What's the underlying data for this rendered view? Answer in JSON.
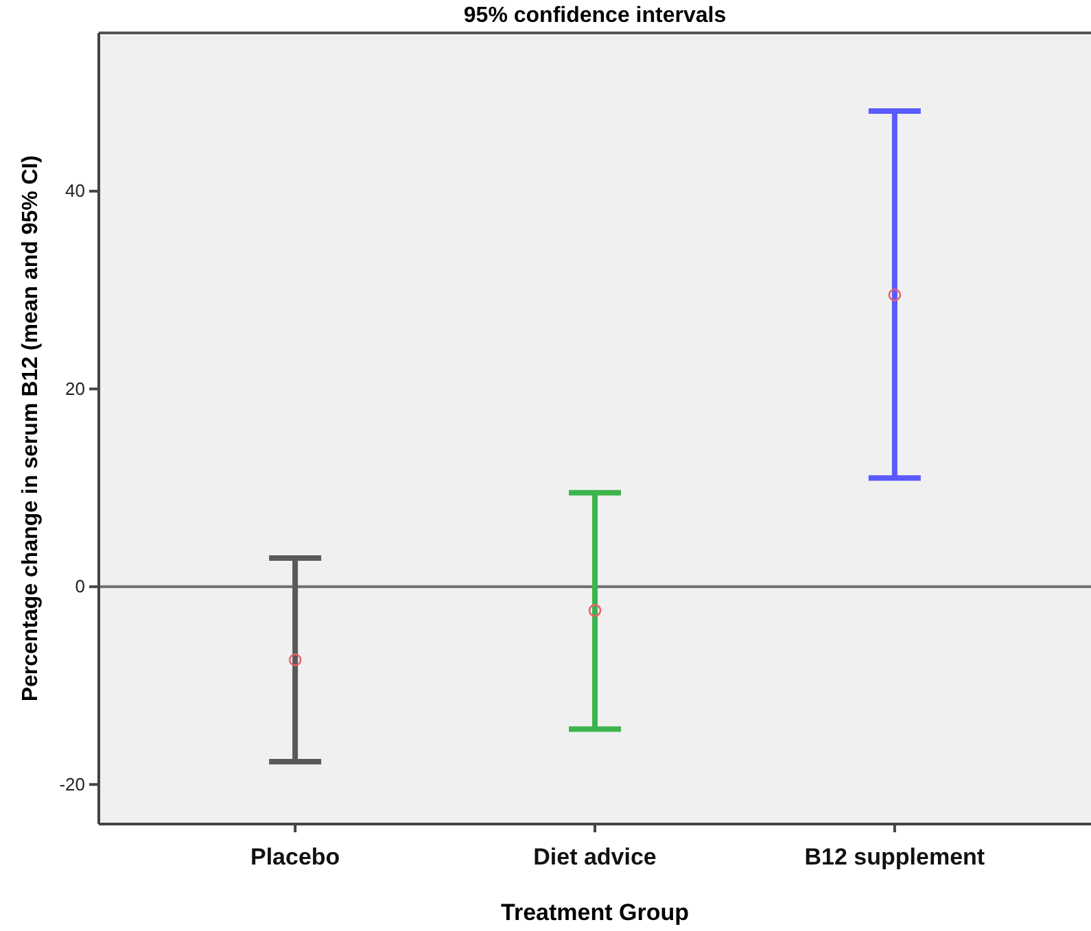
{
  "chart_data": {
    "type": "scatter",
    "title": "95% confidence intervals",
    "xlabel": "Treatment Group",
    "ylabel": "Percentage change in serum B12 (mean and 95% CI)",
    "categories": [
      "Placebo",
      "Diet advice",
      "B12 supplement"
    ],
    "values": [
      -7.4,
      -2.4,
      29.5
    ],
    "errors": [
      [
        -17.7,
        2.9
      ],
      [
        -14.4,
        9.5
      ],
      [
        11.0,
        48.1
      ]
    ],
    "colors": [
      "#e8606a",
      "#e8606a",
      "#e8606a"
    ],
    "marker": "circle",
    "ylim": [
      -24,
      56
    ],
    "yticks": [
      -20,
      0,
      20,
      40
    ],
    "ref_lines": [
      {
        "axis": "y",
        "value": 0,
        "color": "#6e6e6e"
      }
    ],
    "grid": false
  }
}
